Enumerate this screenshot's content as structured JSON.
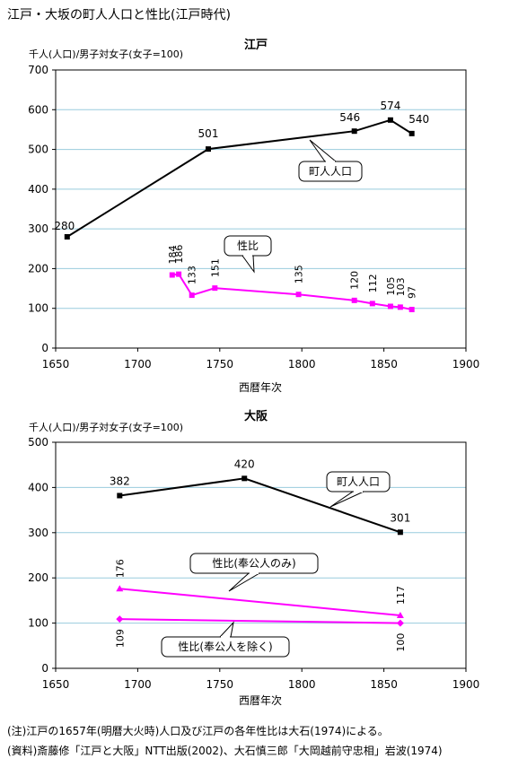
{
  "title": "江戸・大坂の町人人口と性比(江戸時代)",
  "notes": [
    "(注)江戸の1657年(明暦大火時)人口及び江戸の各年性比は大石(1974)による。",
    "(資料)斎藤修「江戸と大阪」NTT出版(2002)、大石慎三郎「大岡越前守忠相」岩波(1974)"
  ],
  "colors": {
    "population": "#000000",
    "ratio": "#ff00ff",
    "grid": "#99ccdd"
  },
  "chart_data": [
    {
      "type": "line",
      "title": "江戸",
      "ylabel": "千人(人口)/男子対女子(女子=100)",
      "xlabel": "西暦年次",
      "xlim": [
        1650,
        1900
      ],
      "ylim": [
        0,
        700
      ],
      "xticks": [
        1650,
        1700,
        1750,
        1800,
        1850,
        1900
      ],
      "yticks": [
        0,
        100,
        200,
        300,
        400,
        500,
        600,
        700
      ],
      "grid": true,
      "series": [
        {
          "name": "町人人口",
          "color": "#000000",
          "marker": "square",
          "x": [
            1657,
            1743,
            1832,
            1854,
            1867
          ],
          "y": [
            280,
            501,
            546,
            574,
            540
          ],
          "labels": [
            "280",
            "501",
            "546",
            "574",
            "540"
          ]
        },
        {
          "name": "性比",
          "color": "#ff00ff",
          "marker": "square",
          "x": [
            1721,
            1725,
            1733,
            1747,
            1798,
            1832,
            1843,
            1854,
            1860,
            1867
          ],
          "y": [
            184,
            186,
            133,
            151,
            135,
            120,
            112,
            105,
            103,
            97
          ],
          "labels": [
            "184",
            "186",
            "133",
            "151",
            "135",
            "120",
            "112",
            "105",
            "103",
            "97"
          ]
        }
      ]
    },
    {
      "type": "line",
      "title": "大阪",
      "ylabel": "千人(人口)/男子対女子(女子=100)",
      "xlabel": "西暦年次",
      "xlim": [
        1650,
        1900
      ],
      "ylim": [
        0,
        500
      ],
      "xticks": [
        1650,
        1700,
        1750,
        1800,
        1850,
        1900
      ],
      "yticks": [
        0,
        100,
        200,
        300,
        400,
        500
      ],
      "grid": true,
      "series": [
        {
          "name": "町人人口",
          "color": "#000000",
          "marker": "square",
          "x": [
            1689,
            1765,
            1860
          ],
          "y": [
            382,
            420,
            301
          ],
          "labels": [
            "382",
            "420",
            "301"
          ]
        },
        {
          "name": "性比(奉公人のみ)",
          "color": "#ff00ff",
          "marker": "triangle",
          "x": [
            1689,
            1860
          ],
          "y": [
            176,
            117
          ],
          "labels": [
            "176",
            "117"
          ]
        },
        {
          "name": "性比(奉公人を除く)",
          "color": "#ff00ff",
          "marker": "diamond",
          "x": [
            1689,
            1860
          ],
          "y": [
            109,
            100
          ],
          "labels": [
            "109",
            "100"
          ]
        }
      ]
    }
  ]
}
